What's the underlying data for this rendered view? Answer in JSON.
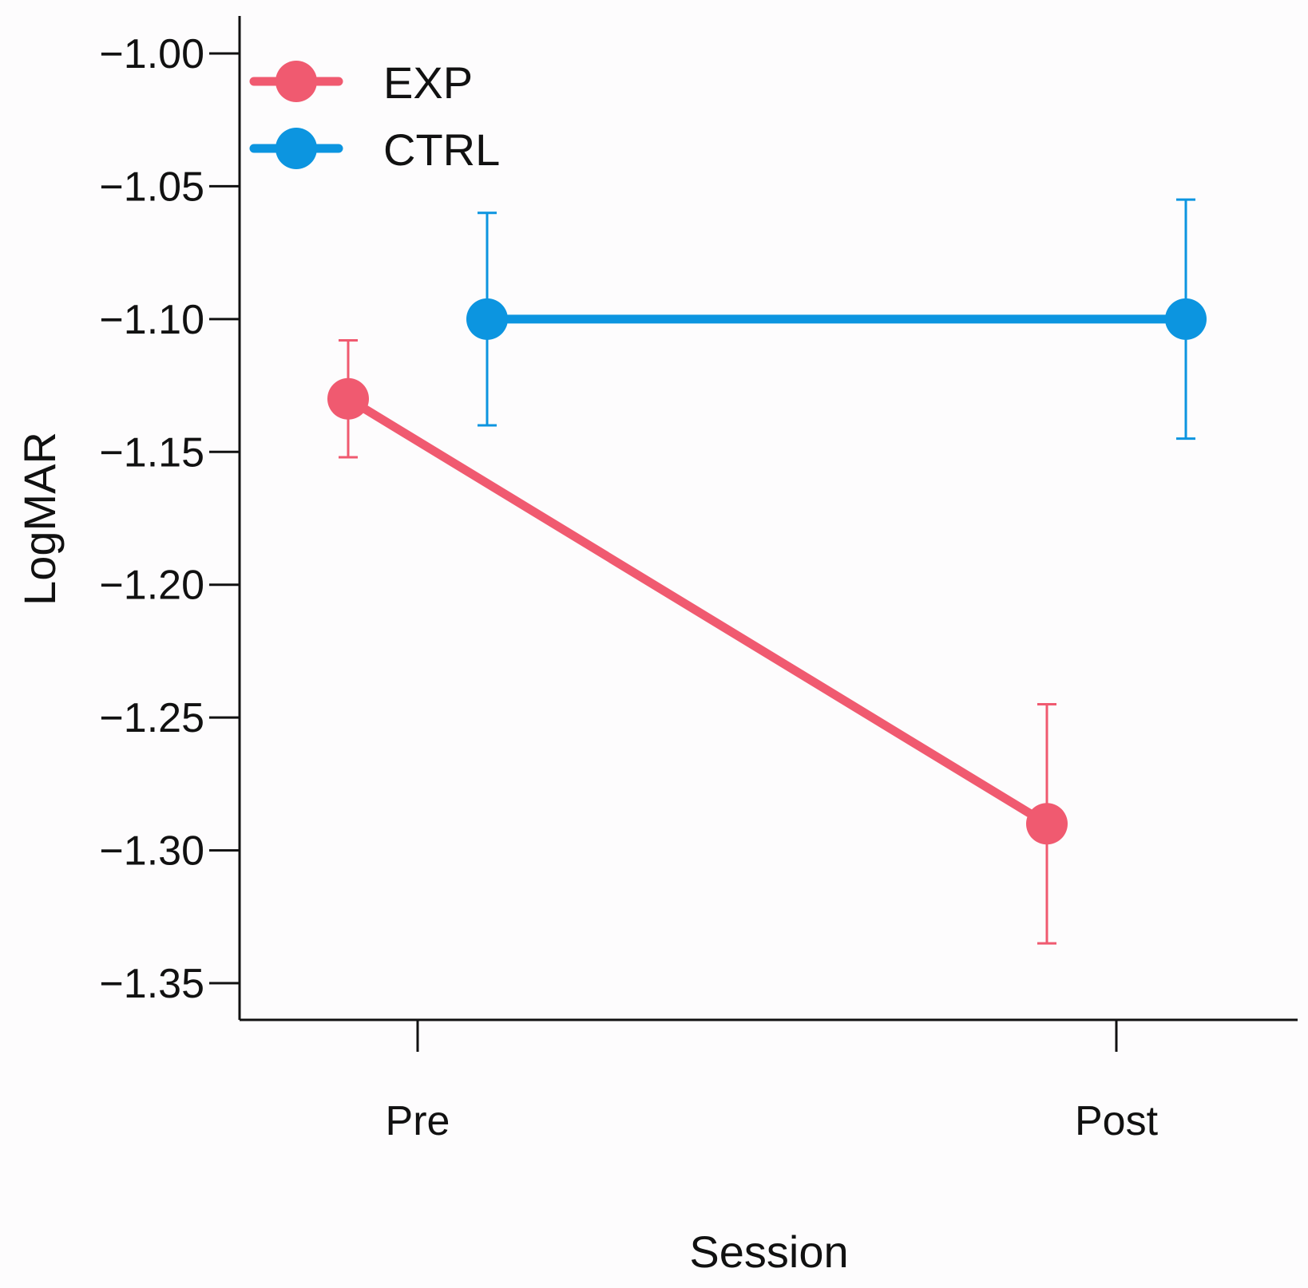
{
  "chart_data": {
    "type": "line",
    "title": "",
    "xlabel": "Session",
    "ylabel": "LogMAR",
    "categories": [
      "Pre",
      "Post"
    ],
    "ylim": [
      -1.35,
      -1.0
    ],
    "yticks": [
      -1.0,
      -1.05,
      -1.1,
      -1.15,
      -1.2,
      -1.25,
      -1.3,
      -1.35
    ],
    "ytick_labels": [
      "−1.00",
      "−1.05",
      "−1.10",
      "−1.15",
      "−1.20",
      "−1.25",
      "−1.30",
      "−1.35"
    ],
    "grid": false,
    "legend_position": "top-left",
    "series": [
      {
        "name": "EXP",
        "color": "#f05a70",
        "values": [
          -1.13,
          -1.29
        ],
        "error_upper": [
          -1.108,
          -1.245
        ],
        "error_lower": [
          -1.152,
          -1.335
        ]
      },
      {
        "name": "CTRL",
        "color": "#0c95e0",
        "values": [
          -1.1,
          -1.1
        ],
        "error_upper": [
          -1.06,
          -1.055
        ],
        "error_lower": [
          -1.14,
          -1.145
        ]
      }
    ]
  }
}
